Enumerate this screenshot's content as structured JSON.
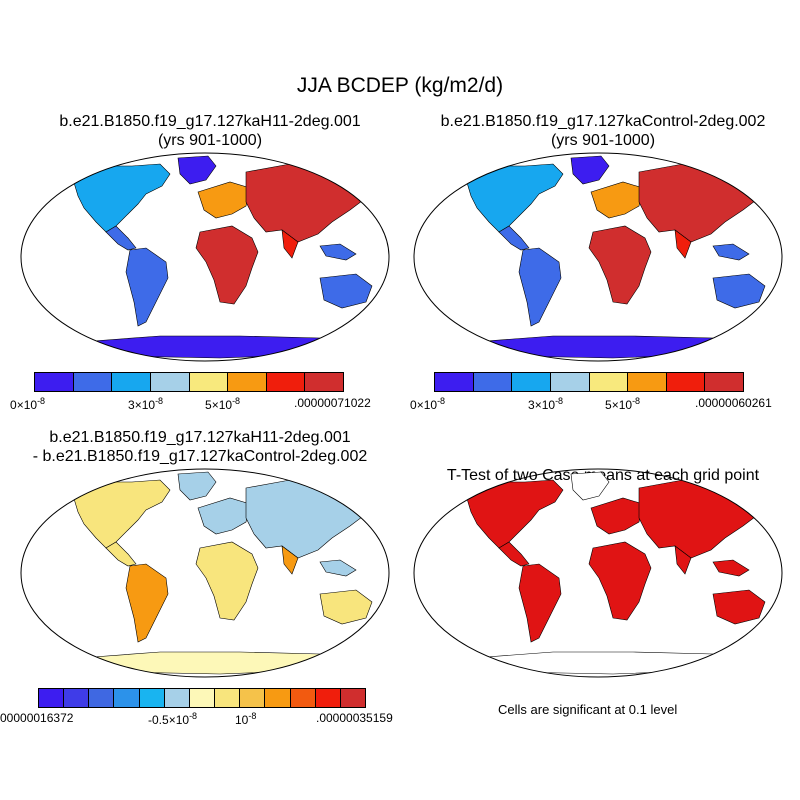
{
  "main_title": "JJA BCDEP (kg/m2/d)",
  "panels": [
    {
      "title_line1": "b.e21.B1850.f19_g17.127kaH11-2deg.001",
      "title_line2": "(yrs 901-1000)"
    },
    {
      "title_line1": "b.e21.B1850.f19_g17.127kaControl-2deg.002",
      "title_line2": "(yrs 901-1000)"
    },
    {
      "title_line1": "b.e21.B1850.f19_g17.127kaH11-2deg.001",
      "title_line2": "- b.e21.B1850.f19_g17.127kaControl-2deg.002"
    },
    {
      "title_line1": "T-Test of two Case means at each grid point",
      "title_line2": ""
    }
  ],
  "colorbars": {
    "case1": {
      "colors": [
        "#3d1df0",
        "#3e6be8",
        "#17a7ef",
        "#a6d0e8",
        "#f8e97d",
        "#f79a12",
        "#f01e0c",
        "#d02e2e"
      ],
      "labels": [
        "0",
        "3",
        "5",
        ".00000071022"
      ]
    },
    "case2": {
      "colors": [
        "#3d1df0",
        "#3e6be8",
        "#17a7ef",
        "#a6d0e8",
        "#f8e97d",
        "#f79a12",
        "#f01e0c",
        "#d02e2e"
      ],
      "labels": [
        "0",
        "3",
        "5",
        ".00000060261"
      ]
    },
    "diff": {
      "colors": [
        "#3d1df0",
        "#3f3ce8",
        "#3f68e2",
        "#2c92ea",
        "#19b4f0",
        "#a6d0e8",
        "#fdf8b8",
        "#f8e57d",
        "#f5c24a",
        "#f79a12",
        "#f25a10",
        "#f01e0c",
        "#d02e2e"
      ],
      "labels": [
        "00000016372",
        "-0.5",
        "10",
        ".00000035159"
      ]
    }
  },
  "sci_exponent": "-8",
  "sci_times": "×",
  "significance_note": "Cells are significant at 0.1 level",
  "colors": {
    "land_red": "#e01414",
    "land_blue": "#3d1df0",
    "ocean": "#ffffff"
  }
}
